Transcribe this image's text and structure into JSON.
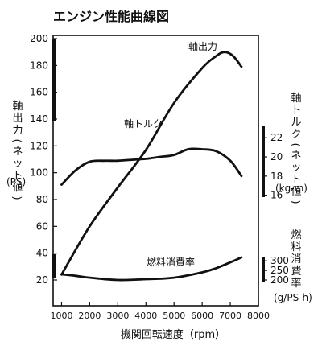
{
  "chart_data": {
    "type": "line",
    "title": "エンジン性能曲線図",
    "xlabel": "機関回転速度（rpm）",
    "x_ticks": [
      1000,
      2000,
      3000,
      4000,
      5000,
      6000,
      7000,
      8000
    ],
    "xlim": [
      700,
      8000
    ],
    "grid": false,
    "axes": {
      "left": {
        "label": "軸出力(ネット値)",
        "unit": "(PS)",
        "ticks": [
          20,
          40,
          60,
          80,
          100,
          120,
          140,
          160,
          180,
          200
        ],
        "ylim": [
          20,
          200
        ]
      },
      "torque": {
        "label": "軸トルク(ネット値)",
        "unit": "(kg-m)",
        "ticks": [
          16,
          18,
          20,
          22
        ],
        "ylim": [
          7.15,
          32.35
        ]
      },
      "fuel": {
        "label": "燃料消費率",
        "unit": "(g/PS-h)",
        "ticks": [
          200,
          250,
          300
        ],
        "ylim": [
          200,
          1462
        ]
      }
    },
    "series": [
      {
        "name": "軸出力",
        "axis": "left",
        "x": [
          1000,
          2000,
          3000,
          4000,
          5000,
          6000,
          6500,
          6800,
          7100,
          7400
        ],
        "y": [
          24,
          60,
          89,
          117,
          152,
          178,
          187,
          190,
          187,
          179
        ]
      },
      {
        "name": "軸トルク",
        "axis": "torque",
        "x": [
          1000,
          1500,
          2000,
          2500,
          3000,
          3500,
          4000,
          4500,
          5000,
          5500,
          6000,
          6500,
          7000,
          7400
        ],
        "y": [
          17.1,
          18.6,
          19.5,
          19.6,
          19.6,
          19.7,
          19.8,
          20.0,
          20.2,
          20.8,
          20.8,
          20.6,
          19.6,
          18.0
        ]
      },
      {
        "name": "燃料消費率",
        "axis": "fuel",
        "x": [
          1000,
          1500,
          2000,
          3000,
          4000,
          5000,
          6000,
          6500,
          7000,
          7400
        ],
        "y": [
          230,
          222,
          212,
          200,
          204,
          212,
          240,
          262,
          292,
          318
        ]
      }
    ]
  }
}
